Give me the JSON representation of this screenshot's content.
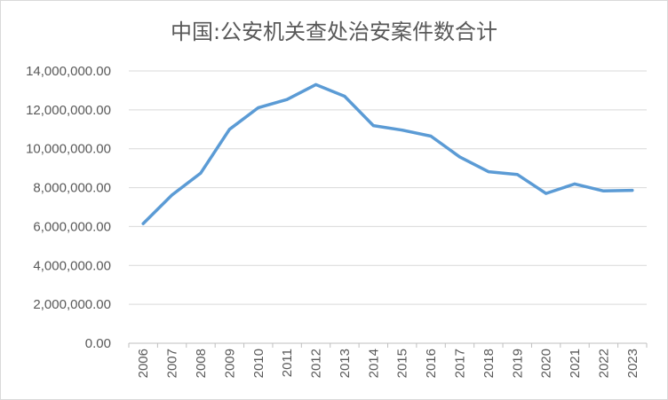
{
  "chart_data": {
    "type": "line",
    "title": "中国:公安机关查处治安案件数合计",
    "xlabel": "",
    "ylabel": "",
    "ylim": [
      0,
      14000000
    ],
    "y_ticks": [
      0,
      2000000,
      4000000,
      6000000,
      8000000,
      10000000,
      12000000,
      14000000
    ],
    "y_tick_labels": [
      "0.00",
      "2,000,000.00",
      "4,000,000.00",
      "6,000,000.00",
      "8,000,000.00",
      "10,000,000.00",
      "12,000,000.00",
      "14,000,000.00"
    ],
    "categories": [
      "2006",
      "2007",
      "2008",
      "2009",
      "2010",
      "2011",
      "2012",
      "2013",
      "2014",
      "2015",
      "2016",
      "2017",
      "2018",
      "2019",
      "2020",
      "2021",
      "2022",
      "2023"
    ],
    "series": [
      {
        "values": [
          6150000,
          7620000,
          8750000,
          11000000,
          12110000,
          12530000,
          13300000,
          12700000,
          11190000,
          10960000,
          10650000,
          9580000,
          8820000,
          8680000,
          7700000,
          8190000,
          7830000,
          7860000
        ],
        "color": "#5b9bd5"
      }
    ],
    "grid": true,
    "legend": "none",
    "colors": {
      "line": "#5b9bd5",
      "grid": "#d9d9d9",
      "axis": "#bfbfbf",
      "text": "#595959"
    }
  }
}
